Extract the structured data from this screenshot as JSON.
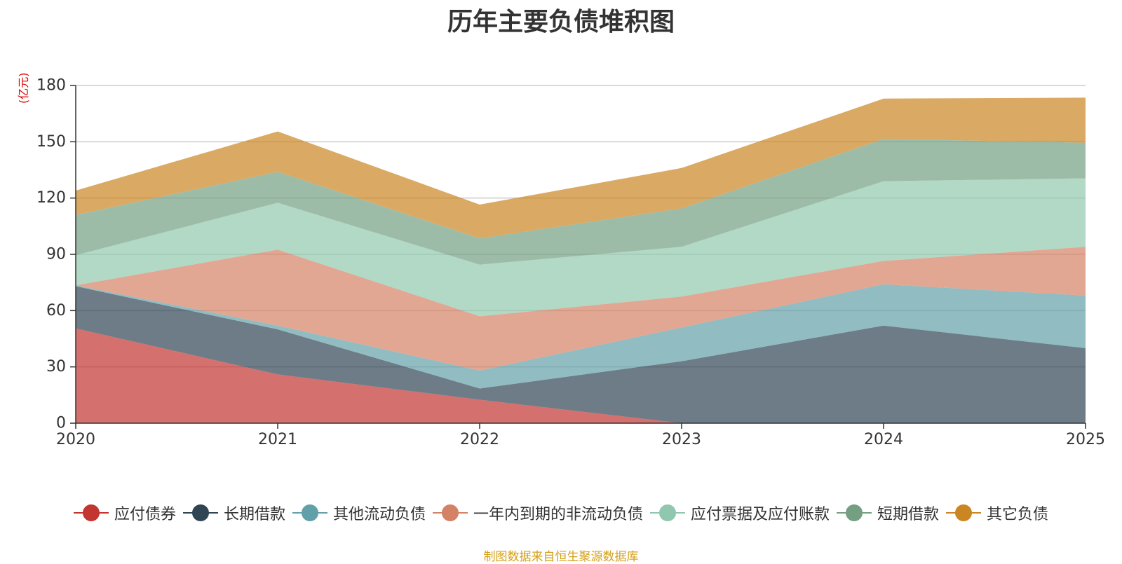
{
  "chart_data": {
    "type": "area",
    "stacked": true,
    "title": "历年主要负债堆积图",
    "unit": "(亿元)",
    "categories": [
      "2020",
      "2021",
      "2022",
      "2023",
      "2024",
      "2025"
    ],
    "ylim": [
      0,
      180
    ],
    "yticks": [
      0,
      30,
      60,
      90,
      120,
      150,
      180
    ],
    "grid": true,
    "legend_position": "bottom",
    "series": [
      {
        "name": "应付债券",
        "color": "#c23531",
        "values": [
          50.5,
          26,
          12.5,
          0,
          0,
          0
        ]
      },
      {
        "name": "长期借款",
        "color": "#2f4554",
        "values": [
          22.5,
          24,
          6,
          33,
          52,
          40
        ]
      },
      {
        "name": "其他流动负债",
        "color": "#61a0a8",
        "values": [
          0.5,
          2,
          9.5,
          18,
          22,
          28
        ]
      },
      {
        "name": "一年内到期的非流动负债",
        "color": "#d48265",
        "values": [
          0,
          40.5,
          29,
          16.5,
          12.5,
          26
        ]
      },
      {
        "name": "应付票据及应付账款",
        "color": "#91c7ae",
        "values": [
          16,
          25,
          27.5,
          26.5,
          42.5,
          36.5
        ]
      },
      {
        "name": "短期借款",
        "color": "#749f83",
        "values": [
          21.5,
          16.5,
          14,
          20.5,
          22.5,
          19
        ]
      },
      {
        "name": "其它负债",
        "color": "#ca8622",
        "values": [
          13,
          21.5,
          18,
          21.5,
          21.5,
          24
        ]
      }
    ]
  },
  "source_note": "制图数据来自恒生聚源数据库"
}
